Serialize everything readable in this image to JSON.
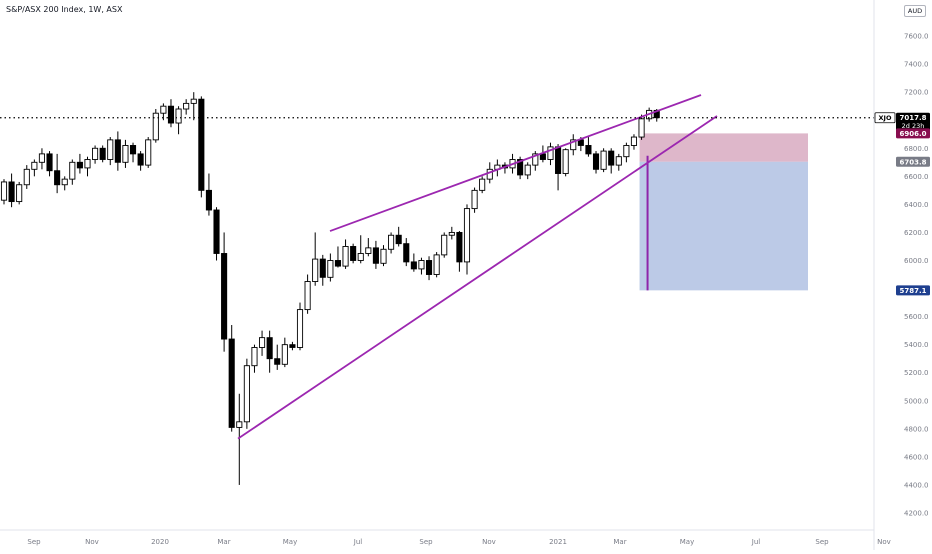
{
  "title": "S&P/ASX 200 Index, 1W, ASX",
  "currency": "AUD",
  "chart_data": {
    "type": "candlestick",
    "ylim": [
      4150,
      7800
    ],
    "y_ticks": [
      4200,
      4400,
      4600,
      4800,
      5000,
      5200,
      5400,
      5600,
      5800,
      6000,
      6200,
      6400,
      6600,
      6800,
      7000,
      7200,
      7400,
      7600
    ],
    "x_labels": [
      "Sep",
      "Nov",
      "2020",
      "Mar",
      "May",
      "Jul",
      "Sep",
      "Nov",
      "2021",
      "Mar",
      "May",
      "Jul",
      "Sep",
      "Nov"
    ],
    "price_labels": {
      "symbol": "XJO",
      "last_price": "7017.8",
      "countdown": "2d 23h",
      "stop_loss": "6906.0",
      "entry": "6703.8",
      "target": "5787.1"
    },
    "candles": [
      [
        6430,
        6580,
        6400,
        6560
      ],
      [
        6560,
        6620,
        6380,
        6420
      ],
      [
        6420,
        6560,
        6400,
        6540
      ],
      [
        6540,
        6680,
        6510,
        6650
      ],
      [
        6650,
        6720,
        6600,
        6700
      ],
      [
        6700,
        6800,
        6650,
        6760
      ],
      [
        6760,
        6780,
        6600,
        6640
      ],
      [
        6640,
        6760,
        6480,
        6540
      ],
      [
        6540,
        6600,
        6500,
        6580
      ],
      [
        6580,
        6720,
        6540,
        6700
      ],
      [
        6700,
        6760,
        6620,
        6660
      ],
      [
        6660,
        6740,
        6600,
        6720
      ],
      [
        6720,
        6820,
        6690,
        6800
      ],
      [
        6800,
        6820,
        6700,
        6720
      ],
      [
        6720,
        6880,
        6680,
        6860
      ],
      [
        6860,
        6920,
        6640,
        6700
      ],
      [
        6700,
        6860,
        6660,
        6820
      ],
      [
        6820,
        6840,
        6700,
        6760
      ],
      [
        6760,
        6780,
        6640,
        6680
      ],
      [
        6680,
        6880,
        6660,
        6860
      ],
      [
        6860,
        7080,
        6840,
        7050
      ],
      [
        7050,
        7120,
        7000,
        7100
      ],
      [
        7100,
        7150,
        6950,
        6980
      ],
      [
        6980,
        7100,
        6900,
        7080
      ],
      [
        7080,
        7150,
        7040,
        7120
      ],
      [
        7120,
        7200,
        7000,
        7150
      ],
      [
        7150,
        7170,
        6450,
        6500
      ],
      [
        6500,
        6620,
        6320,
        6360
      ],
      [
        6360,
        6380,
        6000,
        6050
      ],
      [
        6050,
        6200,
        5350,
        5440
      ],
      [
        5440,
        5540,
        4780,
        4810
      ],
      [
        4810,
        5050,
        4400,
        4850
      ],
      [
        4850,
        5300,
        4800,
        5250
      ],
      [
        5250,
        5400,
        5200,
        5380
      ],
      [
        5380,
        5500,
        5320,
        5450
      ],
      [
        5450,
        5500,
        5200,
        5300
      ],
      [
        5300,
        5400,
        5220,
        5260
      ],
      [
        5260,
        5450,
        5240,
        5400
      ],
      [
        5400,
        5420,
        5360,
        5380
      ],
      [
        5380,
        5700,
        5360,
        5650
      ],
      [
        5650,
        5900,
        5620,
        5850
      ],
      [
        5850,
        6200,
        5820,
        6010
      ],
      [
        6010,
        6040,
        5820,
        5880
      ],
      [
        5880,
        6050,
        5850,
        6000
      ],
      [
        6000,
        6100,
        5950,
        5960
      ],
      [
        5960,
        6150,
        5940,
        6100
      ],
      [
        6100,
        6120,
        5980,
        6000
      ],
      [
        6000,
        6180,
        5980,
        6050
      ],
      [
        6050,
        6160,
        6030,
        6090
      ],
      [
        6090,
        6140,
        5940,
        5980
      ],
      [
        5980,
        6110,
        5960,
        6080
      ],
      [
        6080,
        6200,
        6050,
        6180
      ],
      [
        6180,
        6240,
        6100,
        6120
      ],
      [
        6120,
        6160,
        5960,
        5990
      ],
      [
        5990,
        6050,
        5920,
        5940
      ],
      [
        5940,
        6020,
        5900,
        6000
      ],
      [
        6000,
        6030,
        5860,
        5900
      ],
      [
        5900,
        6060,
        5880,
        6040
      ],
      [
        6040,
        6200,
        6020,
        6180
      ],
      [
        6180,
        6240,
        6150,
        6200
      ],
      [
        6200,
        6210,
        5920,
        5990
      ],
      [
        5990,
        6400,
        5900,
        6370
      ],
      [
        6370,
        6520,
        6340,
        6500
      ],
      [
        6500,
        6600,
        6480,
        6580
      ],
      [
        6580,
        6700,
        6550,
        6650
      ],
      [
        6650,
        6720,
        6600,
        6680
      ],
      [
        6680,
        6700,
        6620,
        6660
      ],
      [
        6660,
        6760,
        6620,
        6720
      ],
      [
        6720,
        6740,
        6580,
        6610
      ],
      [
        6610,
        6700,
        6580,
        6680
      ],
      [
        6680,
        6780,
        6640,
        6760
      ],
      [
        6760,
        6820,
        6700,
        6720
      ],
      [
        6720,
        6840,
        6680,
        6810
      ],
      [
        6810,
        6830,
        6500,
        6620
      ],
      [
        6620,
        6800,
        6600,
        6790
      ],
      [
        6790,
        6900,
        6750,
        6860
      ],
      [
        6860,
        6880,
        6780,
        6820
      ],
      [
        6820,
        6880,
        6740,
        6760
      ],
      [
        6760,
        6780,
        6620,
        6650
      ],
      [
        6650,
        6800,
        6630,
        6780
      ],
      [
        6780,
        6800,
        6620,
        6680
      ],
      [
        6680,
        6760,
        6640,
        6740
      ],
      [
        6740,
        6840,
        6700,
        6820
      ],
      [
        6820,
        6900,
        6790,
        6880
      ],
      [
        6880,
        7040,
        6860,
        7010
      ],
      [
        7010,
        7090,
        6990,
        7070
      ],
      [
        7070,
        7080,
        6990,
        7018
      ]
    ]
  }
}
